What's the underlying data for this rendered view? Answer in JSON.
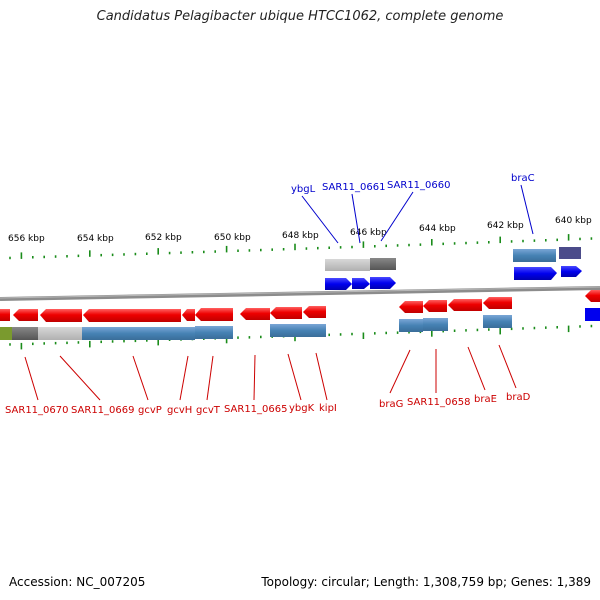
{
  "title": "Candidatus Pelagibacter ubique HTCC1062, complete genome",
  "footer": {
    "accession": "Accession: NC_007205",
    "summary": "Topology: circular; Length: 1,308,759 bp; Genes: 1,389"
  },
  "colors": {
    "gene_arrow": "#ff0000",
    "cds_bar": "#4682b4",
    "cds_bar_light": "#5b8fc7",
    "top_strand_arrow": "#0000ff",
    "backbone": "#8c8c8c",
    "tick": "#1a8c1a",
    "label_forward": "#0000cc",
    "label_reverse": "#cc0000"
  },
  "scale": {
    "unit": "kbp",
    "ticks": [
      {
        "value": 656,
        "label": "656 kbp"
      },
      {
        "value": 654,
        "label": "654 kbp"
      },
      {
        "value": 652,
        "label": "652 kbp"
      },
      {
        "value": 650,
        "label": "650 kbp"
      },
      {
        "value": 648,
        "label": "648 kbp"
      },
      {
        "value": 646,
        "label": "646 kbp"
      },
      {
        "value": 644,
        "label": "644 kbp"
      },
      {
        "value": 642,
        "label": "642 kbp"
      },
      {
        "value": 640,
        "label": "640 kbp"
      }
    ]
  },
  "genes_top_strand": [
    {
      "name": "ybgL"
    },
    {
      "name": "SAR11_0661"
    },
    {
      "name": "SAR11_0660"
    },
    {
      "name": "braC"
    }
  ],
  "genes_bottom_strand": [
    {
      "name": "SAR11_0670"
    },
    {
      "name": "SAR11_0669"
    },
    {
      "name": "gcvP"
    },
    {
      "name": "gcvH"
    },
    {
      "name": "gcvT"
    },
    {
      "name": "SAR11_0665"
    },
    {
      "name": "ybgK"
    },
    {
      "name": "kipI"
    },
    {
      "name": "braG"
    },
    {
      "name": "SAR11_0658"
    },
    {
      "name": "braE"
    },
    {
      "name": "braD"
    }
  ]
}
